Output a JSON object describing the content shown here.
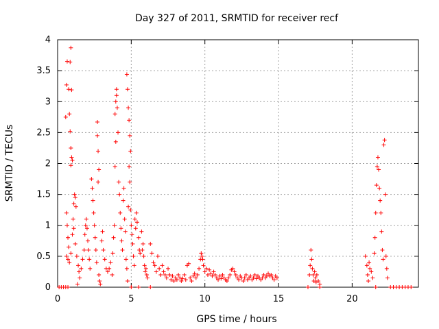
{
  "chart_data": {
    "type": "scatter",
    "title": "Day 327 of 2011, SRMTID for receiver recf",
    "xlabel": "GPS time / hours",
    "ylabel": "SRMTID / TECUs",
    "xlim": [
      0,
      24.5
    ],
    "ylim": [
      0,
      4
    ],
    "xticks": [
      0,
      5,
      10,
      15,
      20
    ],
    "xtick_labels": [
      "0",
      "5",
      "10",
      "15",
      "20"
    ],
    "yticks": [
      0,
      0.5,
      1,
      1.5,
      2,
      2.5,
      3,
      3.5,
      4
    ],
    "ytick_labels": [
      "0",
      "0.5",
      "1",
      "1.5",
      "2",
      "2.5",
      "3",
      "3.5",
      "4"
    ],
    "grid": true,
    "marker": "+",
    "series": [
      {
        "name": "SRMTID",
        "color": "#ff0000",
        "points": [
          [
            0.1,
            0
          ],
          [
            0.25,
            0
          ],
          [
            0.4,
            0
          ],
          [
            0.55,
            0
          ],
          [
            0.7,
            0
          ],
          [
            0.55,
            2.75
          ],
          [
            0.6,
            3.27
          ],
          [
            0.65,
            3.65
          ],
          [
            0.75,
            3.2
          ],
          [
            0.85,
            3.64
          ],
          [
            0.9,
            3.87
          ],
          [
            0.95,
            3.19
          ],
          [
            0.8,
            2.8
          ],
          [
            0.85,
            2.52
          ],
          [
            0.9,
            2.25
          ],
          [
            0.95,
            2.1
          ],
          [
            0.9,
            1.97
          ],
          [
            1.0,
            2.05
          ],
          [
            0.6,
            1.2
          ],
          [
            0.65,
            1.0
          ],
          [
            0.7,
            0.8
          ],
          [
            0.75,
            0.65
          ],
          [
            0.6,
            0.5
          ],
          [
            0.7,
            0.45
          ],
          [
            0.8,
            0.4
          ],
          [
            0.9,
            0.55
          ],
          [
            1.0,
            0.85
          ],
          [
            1.05,
            1.1
          ],
          [
            1.1,
            1.35
          ],
          [
            1.15,
            1.5
          ],
          [
            1.2,
            1.45
          ],
          [
            1.25,
            1.3
          ],
          [
            1.1,
            0.95
          ],
          [
            1.2,
            0.7
          ],
          [
            1.3,
            0.5
          ],
          [
            1.4,
            0.35
          ],
          [
            1.45,
            0.25
          ],
          [
            1.5,
            0.15
          ],
          [
            1.35,
            0.05
          ],
          [
            1.6,
            0.3
          ],
          [
            1.7,
            0.45
          ],
          [
            1.8,
            0.6
          ],
          [
            1.85,
            0.85
          ],
          [
            1.9,
            1.0
          ],
          [
            1.95,
            1.1
          ],
          [
            2.0,
            0.95
          ],
          [
            2.05,
            0.75
          ],
          [
            2.1,
            0.6
          ],
          [
            2.15,
            0.45
          ],
          [
            2.2,
            0.3
          ],
          [
            2.3,
            1.75
          ],
          [
            2.35,
            1.6
          ],
          [
            2.4,
            1.4
          ],
          [
            2.45,
            1.2
          ],
          [
            2.5,
            1.0
          ],
          [
            2.55,
            0.8
          ],
          [
            2.6,
            0.6
          ],
          [
            2.65,
            0.4
          ],
          [
            2.7,
            2.67
          ],
          [
            2.7,
            2.45
          ],
          [
            2.75,
            2.2
          ],
          [
            2.8,
            1.9
          ],
          [
            2.75,
            1.7
          ],
          [
            2.8,
            0.2
          ],
          [
            2.85,
            0.1
          ],
          [
            2.9,
            0.05
          ],
          [
            3.0,
            0.75
          ],
          [
            3.05,
            0.9
          ],
          [
            3.1,
            0.6
          ],
          [
            3.2,
            0.45
          ],
          [
            3.3,
            0.3
          ],
          [
            3.4,
            0.25
          ],
          [
            3.5,
            0.3
          ],
          [
            3.6,
            0.4
          ],
          [
            3.7,
            0.2
          ],
          [
            3.75,
            0.55
          ],
          [
            3.8,
            0.8
          ],
          [
            3.85,
            1.0
          ],
          [
            3.9,
            1.95
          ],
          [
            3.95,
            2.35
          ],
          [
            3.9,
            2.8
          ],
          [
            3.95,
            3.0
          ],
          [
            4.0,
            3.1
          ],
          [
            4.0,
            3.2
          ],
          [
            4.05,
            2.9
          ],
          [
            4.1,
            2.5
          ],
          [
            4.15,
            1.7
          ],
          [
            4.2,
            1.5
          ],
          [
            4.25,
            1.2
          ],
          [
            4.3,
            0.95
          ],
          [
            4.35,
            0.75
          ],
          [
            4.4,
            0.6
          ],
          [
            4.45,
            1.4
          ],
          [
            4.5,
            1.6
          ],
          [
            4.55,
            1.1
          ],
          [
            4.6,
            0.9
          ],
          [
            4.65,
            0.45
          ],
          [
            4.7,
            0.3
          ],
          [
            4.7,
            3.44
          ],
          [
            4.75,
            3.2
          ],
          [
            4.8,
            2.9
          ],
          [
            4.85,
            2.7
          ],
          [
            4.9,
            2.45
          ],
          [
            4.95,
            2.2
          ],
          [
            4.85,
            1.95
          ],
          [
            4.9,
            1.7
          ],
          [
            4.75,
            0.1
          ],
          [
            4.8,
            1.3
          ],
          [
            4.95,
            1.25
          ],
          [
            5.0,
            1.0
          ],
          [
            5.05,
            0.85
          ],
          [
            5.1,
            0.7
          ],
          [
            5.15,
            0.5
          ],
          [
            5.2,
            0.35
          ],
          [
            5.25,
            1.1
          ],
          [
            5.3,
            0.95
          ],
          [
            5.35,
            1.2
          ],
          [
            5.4,
            1.05
          ],
          [
            5.5,
            0.8
          ],
          [
            5.55,
            0.6
          ],
          [
            5.6,
            0.55
          ],
          [
            5.7,
            0.9
          ],
          [
            5.75,
            0.6
          ],
          [
            5.8,
            0.7
          ],
          [
            5.85,
            0.5
          ],
          [
            5.9,
            0.35
          ],
          [
            5.95,
            0.25
          ],
          [
            6.0,
            0.3
          ],
          [
            6.05,
            0.2
          ],
          [
            6.1,
            0.15
          ],
          [
            5.0,
            0
          ],
          [
            5.5,
            0
          ],
          [
            6.3,
            0
          ],
          [
            6.3,
            0.7
          ],
          [
            6.4,
            0.55
          ],
          [
            6.5,
            0.4
          ],
          [
            6.6,
            0.35
          ],
          [
            6.7,
            0.25
          ],
          [
            6.8,
            0.5
          ],
          [
            6.9,
            0.3
          ],
          [
            7.0,
            0.2
          ],
          [
            7.1,
            0.35
          ],
          [
            7.2,
            0.25
          ],
          [
            7.3,
            0.2
          ],
          [
            7.4,
            0.15
          ],
          [
            7.5,
            0.3
          ],
          [
            7.6,
            0.2
          ],
          [
            7.7,
            0.12
          ],
          [
            7.8,
            0.18
          ],
          [
            7.9,
            0.1
          ],
          [
            8.0,
            0.15
          ],
          [
            8.1,
            0.12
          ],
          [
            8.2,
            0.2
          ],
          [
            8.3,
            0.15
          ],
          [
            8.4,
            0.1
          ],
          [
            8.5,
            0.14
          ],
          [
            8.6,
            0.2
          ],
          [
            8.7,
            0.12
          ],
          [
            8.8,
            0.35
          ],
          [
            8.9,
            0.38
          ],
          [
            9.0,
            0.15
          ],
          [
            9.1,
            0.1
          ],
          [
            9.2,
            0.18
          ],
          [
            9.3,
            0.22
          ],
          [
            9.4,
            0.15
          ],
          [
            9.5,
            0.2
          ],
          [
            9.6,
            0.3
          ],
          [
            9.7,
            0.45
          ],
          [
            9.75,
            0.55
          ],
          [
            9.8,
            0.5
          ],
          [
            9.85,
            0.45
          ],
          [
            9.9,
            0.35
          ],
          [
            10.0,
            0.25
          ],
          [
            10.1,
            0.3
          ],
          [
            10.2,
            0.2
          ],
          [
            10.3,
            0.28
          ],
          [
            10.4,
            0.22
          ],
          [
            10.5,
            0.18
          ],
          [
            10.6,
            0.25
          ],
          [
            10.7,
            0.2
          ],
          [
            10.8,
            0.15
          ],
          [
            10.9,
            0.12
          ],
          [
            11.0,
            0.18
          ],
          [
            11.1,
            0.14
          ],
          [
            11.2,
            0.2
          ],
          [
            11.3,
            0.15
          ],
          [
            11.4,
            0.12
          ],
          [
            11.5,
            0.1
          ],
          [
            11.6,
            0.15
          ],
          [
            11.7,
            0.2
          ],
          [
            11.8,
            0.28
          ],
          [
            11.9,
            0.3
          ],
          [
            12.0,
            0.25
          ],
          [
            12.1,
            0.2
          ],
          [
            12.2,
            0.15
          ],
          [
            12.3,
            0.12
          ],
          [
            12.4,
            0.18
          ],
          [
            12.5,
            0.15
          ],
          [
            12.6,
            0.1
          ],
          [
            12.7,
            0.15
          ],
          [
            12.8,
            0.2
          ],
          [
            12.9,
            0.12
          ],
          [
            13.0,
            0.15
          ],
          [
            13.1,
            0.18
          ],
          [
            13.2,
            0.12
          ],
          [
            13.3,
            0.15
          ],
          [
            13.4,
            0.2
          ],
          [
            13.5,
            0.14
          ],
          [
            13.6,
            0.18
          ],
          [
            13.7,
            0.15
          ],
          [
            13.8,
            0.12
          ],
          [
            13.9,
            0.15
          ],
          [
            14.0,
            0.2
          ],
          [
            14.1,
            0.15
          ],
          [
            14.2,
            0.18
          ],
          [
            14.3,
            0.22
          ],
          [
            14.4,
            0.18
          ],
          [
            14.5,
            0.2
          ],
          [
            14.6,
            0.15
          ],
          [
            14.7,
            0.12
          ],
          [
            14.8,
            0.18
          ],
          [
            14.9,
            0.15
          ],
          [
            17.0,
            0
          ],
          [
            17.1,
            0.2
          ],
          [
            17.15,
            0.35
          ],
          [
            17.2,
            0.6
          ],
          [
            17.25,
            0.45
          ],
          [
            17.3,
            0.3
          ],
          [
            17.35,
            0.2
          ],
          [
            17.4,
            0.1
          ],
          [
            17.45,
            0.25
          ],
          [
            17.5,
            0.15
          ],
          [
            17.55,
            0.08
          ],
          [
            17.6,
            0.2
          ],
          [
            17.7,
            0.1
          ],
          [
            17.8,
            0.05
          ],
          [
            17.8,
            0
          ],
          [
            20.9,
            0.5
          ],
          [
            21.0,
            0.35
          ],
          [
            21.05,
            0.2
          ],
          [
            21.1,
            0.1
          ],
          [
            21.15,
            0.4
          ],
          [
            21.2,
            0.3
          ],
          [
            21.3,
            0.25
          ],
          [
            21.4,
            0.15
          ],
          [
            21.5,
            0.55
          ],
          [
            21.55,
            0.8
          ],
          [
            21.6,
            1.2
          ],
          [
            21.65,
            1.65
          ],
          [
            21.7,
            1.95
          ],
          [
            21.75,
            2.1
          ],
          [
            21.8,
            1.9
          ],
          [
            21.85,
            1.6
          ],
          [
            21.9,
            1.4
          ],
          [
            21.95,
            1.2
          ],
          [
            22.0,
            0.9
          ],
          [
            22.05,
            0.6
          ],
          [
            22.1,
            0.45
          ],
          [
            22.15,
            2.3
          ],
          [
            22.2,
            2.38
          ],
          [
            22.25,
            1.5
          ],
          [
            22.3,
            0.5
          ],
          [
            22.35,
            0.3
          ],
          [
            22.4,
            0.15
          ],
          [
            21.6,
            0
          ],
          [
            22.6,
            0
          ],
          [
            22.8,
            0
          ],
          [
            23.0,
            0
          ],
          [
            23.2,
            0
          ],
          [
            23.4,
            0
          ],
          [
            23.6,
            0
          ],
          [
            23.8,
            0
          ],
          [
            24.0,
            0
          ]
        ]
      }
    ]
  }
}
